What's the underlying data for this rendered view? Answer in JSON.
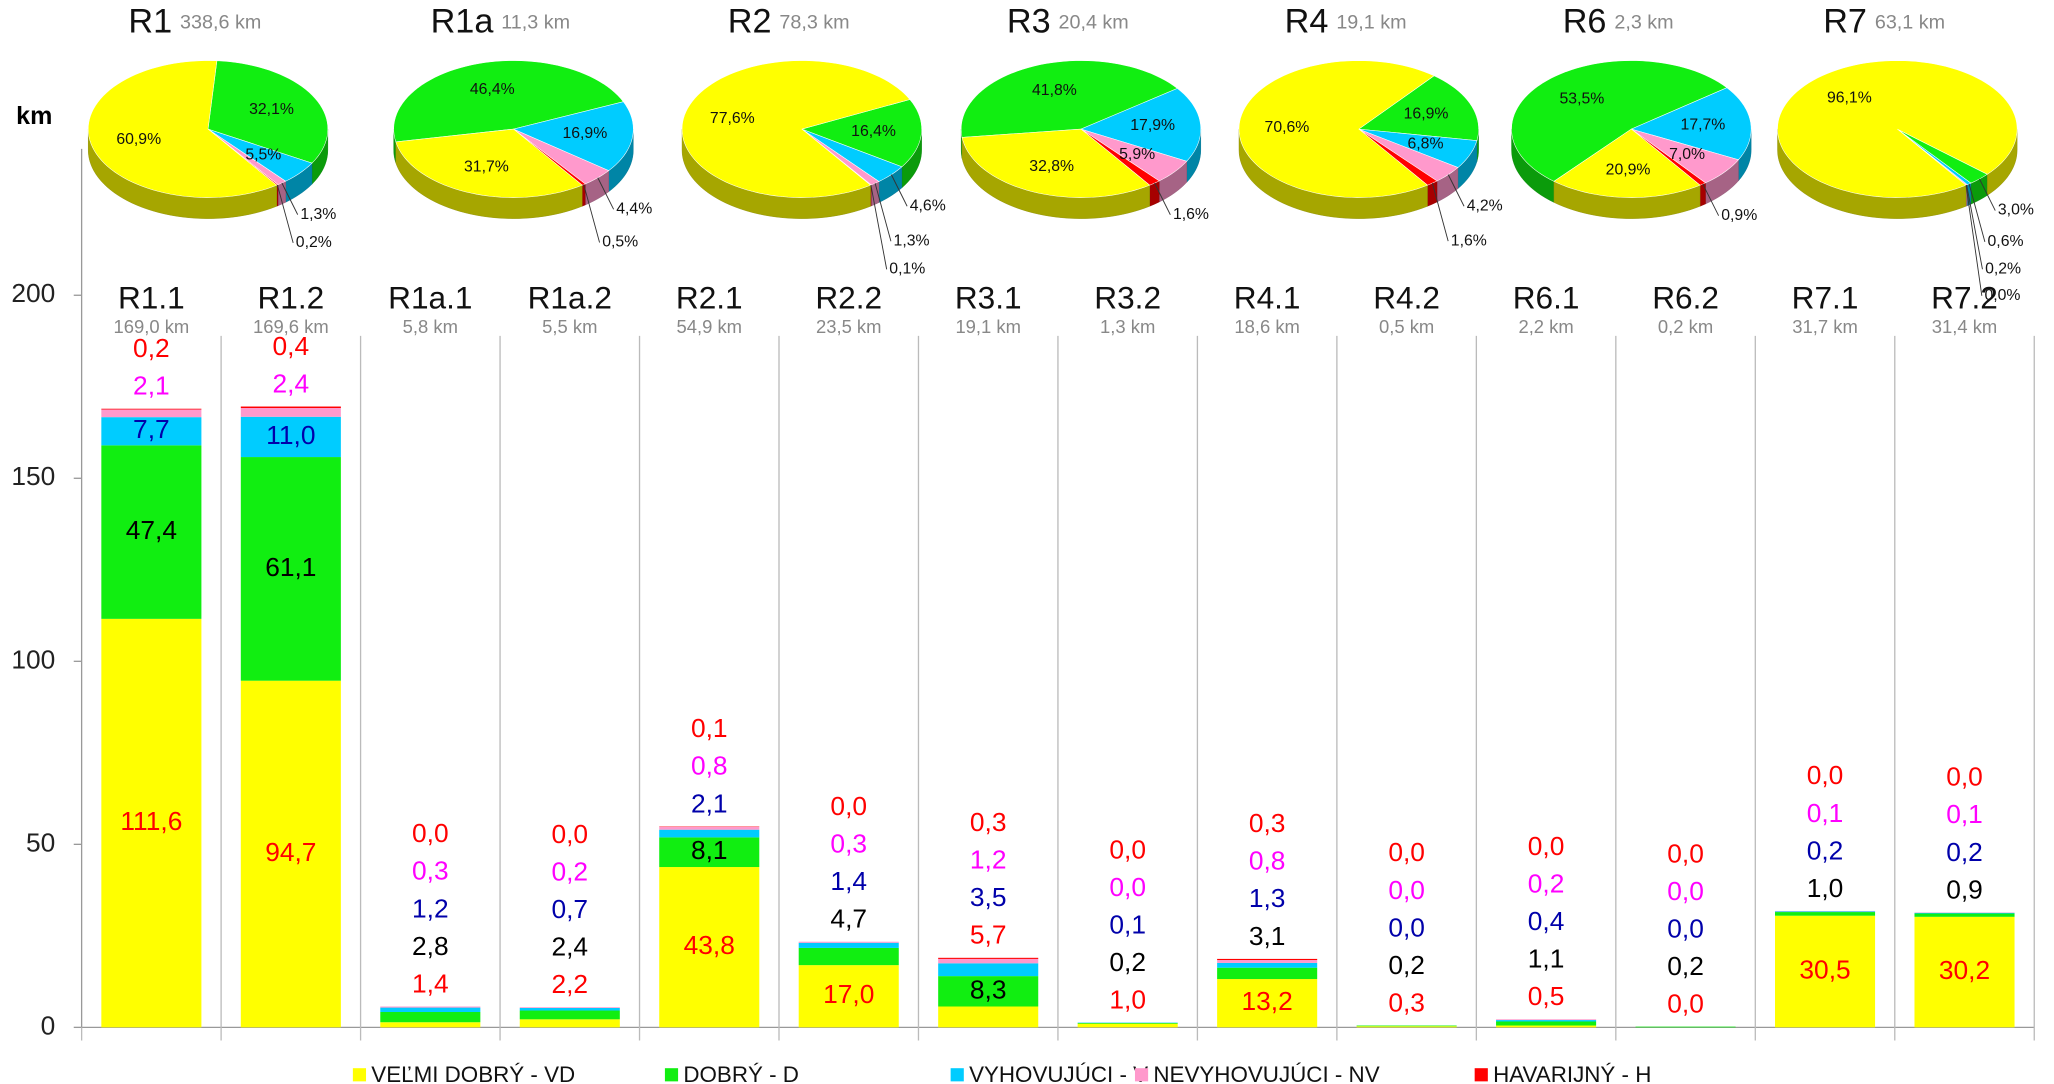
{
  "chart_data": [
    {
      "type": "bar",
      "stacked": true,
      "ylabel": "km",
      "categories": [
        "R1.1",
        "R1.2",
        "R1a.1",
        "R1a.2",
        "R2.1",
        "R2.2",
        "R3.1",
        "R3.2",
        "R4.1",
        "R4.2",
        "R6.1",
        "R6.2",
        "R7.1",
        "R7.2"
      ],
      "category_totals": [
        "169,0 km",
        "169,6 km",
        "5,8 km",
        "5,5 km",
        "54,9 km",
        "23,5 km",
        "19,1 km",
        "1,3 km",
        "18,6 km",
        "0,5 km",
        "2,2 km",
        "0,2 km",
        "31,7 km",
        "31,4 km"
      ],
      "ylim": [
        0,
        240
      ],
      "yticks": [
        0,
        50,
        100,
        150,
        200
      ],
      "series": [
        {
          "name": "VEĽMI DOBRÝ -  VD",
          "color": "#ffff00",
          "label_color": "#ff0000",
          "values": [
            111.6,
            94.7,
            1.4,
            2.2,
            43.8,
            17.0,
            5.7,
            1.0,
            13.2,
            0.3,
            0.5,
            0.0,
            30.5,
            30.2
          ],
          "value_labels": [
            "111,6",
            "94,7",
            "1,4",
            "2,2",
            "43,8",
            "17,0",
            "5,7",
            "1,0",
            "13,2",
            "0,3",
            "0,5",
            "0,0",
            "30,5",
            "30,2"
          ]
        },
        {
          "name": "DOBRÝ - D",
          "color": "#11ee11",
          "label_color": "#000000",
          "values": [
            47.4,
            61.1,
            2.8,
            2.4,
            8.1,
            4.7,
            8.3,
            0.2,
            3.1,
            0.2,
            1.1,
            0.2,
            1.0,
            0.9
          ],
          "value_labels": [
            "47,4",
            "61,1",
            "2,8",
            "2,4",
            "8,1",
            "4,7",
            "8,3",
            "0,2",
            "3,1",
            "0,2",
            "1,1",
            "0,2",
            "1,0",
            "0,9"
          ]
        },
        {
          "name": "VYHOVUJÚCI - V",
          "color": "#00ccff",
          "label_color": "#0000aa",
          "values": [
            7.7,
            11.0,
            1.2,
            0.7,
            2.1,
            1.4,
            3.5,
            0.1,
            1.3,
            0.0,
            0.4,
            0.0,
            0.2,
            0.2
          ],
          "value_labels": [
            "7,7",
            "11,0",
            "1,2",
            "0,7",
            "2,1",
            "1,4",
            "3,5",
            "0,1",
            "1,3",
            "0,0",
            "0,4",
            "0,0",
            "0,2",
            "0,2"
          ]
        },
        {
          "name": "NEVYHOVUJÚCI  -  NV",
          "color": "#ff99cc",
          "label_color": "#ff00ff",
          "values": [
            2.1,
            2.4,
            0.3,
            0.2,
            0.8,
            0.3,
            1.2,
            0.0,
            0.8,
            0.0,
            0.2,
            0.0,
            0.1,
            0.1
          ],
          "value_labels": [
            "2,1",
            "2,4",
            "0,3",
            "0,2",
            "0,8",
            "0,3",
            "1,2",
            "0,0",
            "0,8",
            "0,0",
            "0,2",
            "0,0",
            "0,1",
            "0,1"
          ]
        },
        {
          "name": "HAVARIJNÝ  - H",
          "color": "#ff0000",
          "label_color": "#ff0000",
          "values": [
            0.2,
            0.4,
            0.0,
            0.0,
            0.1,
            0.0,
            0.3,
            0.0,
            0.3,
            0.0,
            0.0,
            0.0,
            0.0,
            0.0
          ],
          "value_labels": [
            "0,2",
            "0,4",
            "0,0",
            "0,0",
            "0,1",
            "0,0",
            "0,3",
            "0,0",
            "0,3",
            "0,0",
            "0,0",
            "0,0",
            "0,0",
            "0,0"
          ]
        }
      ]
    },
    {
      "type": "pie",
      "title": "R1",
      "subtitle": "338,6 km",
      "colors": [
        "#ffff00",
        "#11ee11",
        "#00ccff",
        "#ff99cc",
        "#ff0000"
      ],
      "values": [
        60.9,
        32.1,
        5.5,
        1.3,
        0.2
      ],
      "value_labels": [
        "60,9%",
        "32,1%",
        "5,5%",
        "1,3%",
        "0,2%"
      ]
    },
    {
      "type": "pie",
      "title": "R1a",
      "subtitle": "11,3 km",
      "colors": [
        "#ffff00",
        "#11ee11",
        "#00ccff",
        "#ff99cc",
        "#ff0000"
      ],
      "values": [
        31.7,
        46.4,
        16.9,
        4.4,
        0.5
      ],
      "value_labels": [
        "31,7%",
        "46,4%",
        "16,9%",
        "4,4%",
        "0,5%"
      ]
    },
    {
      "type": "pie",
      "title": "R2",
      "subtitle": "78,3 km",
      "colors": [
        "#ffff00",
        "#11ee11",
        "#00ccff",
        "#ff99cc",
        "#ff0000"
      ],
      "values": [
        77.6,
        16.4,
        4.6,
        1.3,
        0.1
      ],
      "value_labels": [
        "77,6%",
        "16,4%",
        "4,6%",
        "1,3%",
        "0,1%"
      ]
    },
    {
      "type": "pie",
      "title": "R3",
      "subtitle": "20,4 km",
      "colors": [
        "#ffff00",
        "#11ee11",
        "#00ccff",
        "#ff99cc",
        "#ff0000"
      ],
      "values": [
        32.8,
        41.8,
        17.9,
        5.9,
        1.6
      ],
      "value_labels": [
        "32,8%",
        "41,8%",
        "17,9%",
        "5,9%",
        "1,6%"
      ]
    },
    {
      "type": "pie",
      "title": "R4",
      "subtitle": "19,1 km",
      "colors": [
        "#ffff00",
        "#11ee11",
        "#00ccff",
        "#ff99cc",
        "#ff0000"
      ],
      "values": [
        70.6,
        16.9,
        6.8,
        4.2,
        1.6
      ],
      "value_labels": [
        "70,6%",
        "16,9%",
        "6,8%",
        "4,2%",
        "1,6%"
      ]
    },
    {
      "type": "pie",
      "title": "R6",
      "subtitle": "2,3 km",
      "colors": [
        "#ffff00",
        "#11ee11",
        "#00ccff",
        "#ff99cc",
        "#ff0000"
      ],
      "values": [
        20.9,
        53.5,
        17.7,
        7.0,
        0.9
      ],
      "value_labels": [
        "20,9%",
        "53,5%",
        "17,7%",
        "7,0%",
        "0,9%"
      ]
    },
    {
      "type": "pie",
      "title": "R7",
      "subtitle": "63,1 km",
      "colors": [
        "#ffff00",
        "#11ee11",
        "#00ccff",
        "#ff99cc",
        "#ff0000"
      ],
      "values": [
        96.1,
        3.0,
        0.6,
        0.2,
        0.0
      ],
      "value_labels": [
        "96,1%",
        "3,0%",
        "0,6%",
        "0,2%",
        "0,0%"
      ]
    }
  ]
}
